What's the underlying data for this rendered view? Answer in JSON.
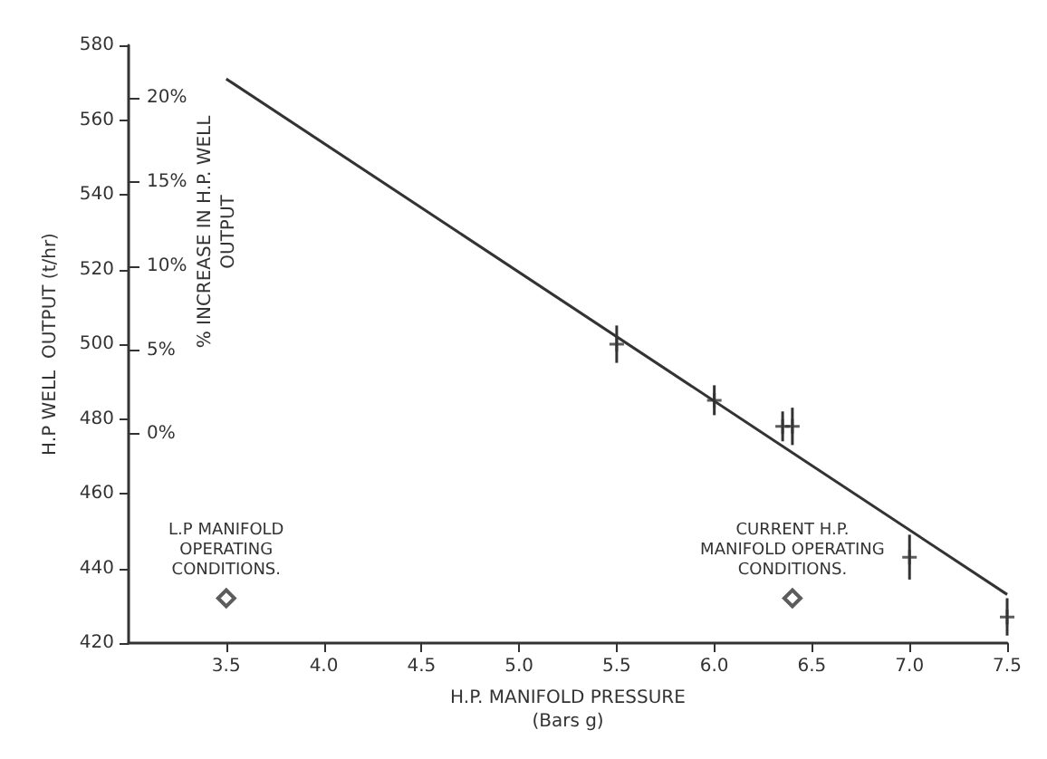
{
  "chart_data": {
    "type": "scatter",
    "xlabel": "H.P. MANIFOLD PRESSURE\n(Bars g)",
    "ylabel": "H.P WELL  OUTPUT (t/hr)",
    "y2label": "% INCREASE IN H.P. WELL\nOUTPUT",
    "xlim": [
      3.0,
      7.5
    ],
    "xticks": [
      3.5,
      {
        "value": 4,
        "label": "4.0"
      },
      4.5,
      {
        "value": 5,
        "label": "5.0"
      },
      5.5,
      {
        "value": 6,
        "label": "6.0"
      },
      6.5,
      {
        "value": 7,
        "label": "7.0"
      },
      7.5
    ],
    "ylim": [
      420,
      580
    ],
    "yticks": [
      420,
      440,
      460,
      480,
      500,
      520,
      540,
      560,
      580
    ],
    "y2lim": [
      -12.4,
      23.1
    ],
    "y2ticks": [
      {
        "value": 0,
        "label": "0%"
      },
      {
        "value": 5,
        "label": "5%"
      },
      {
        "value": 10,
        "label": "10%"
      },
      {
        "value": 15,
        "label": "15%"
      },
      {
        "value": 20,
        "label": "20%"
      }
    ],
    "grid": false,
    "series": [
      {
        "type": "line",
        "color": "#333333",
        "x": [
          3.5,
          7.5
        ],
        "values": [
          571,
          433
        ],
        "marker": "none",
        "line_style": "solid"
      },
      {
        "color": "#333333",
        "x": [
          5.5,
          6.0,
          6.35,
          6.4,
          7.0,
          7.5
        ],
        "values": [
          500,
          485,
          478,
          478,
          443,
          427
        ],
        "errors": [
          5,
          4,
          4,
          5,
          6,
          5
        ],
        "marker": "cross"
      },
      {
        "color": "#333333",
        "x": [
          3.5,
          6.4
        ],
        "values": [
          432,
          432
        ],
        "marker": "diamond"
      }
    ],
    "annotations": [
      {
        "text": "L.P MANIFOLD\nOPERATING\nCONDITIONS.",
        "x": 3.5,
        "y": 432
      },
      {
        "text": "CURRENT H.P.\nMANIFOLD OPERATING\nCONDITIONS.",
        "x": 6.4,
        "y": 432
      }
    ]
  }
}
